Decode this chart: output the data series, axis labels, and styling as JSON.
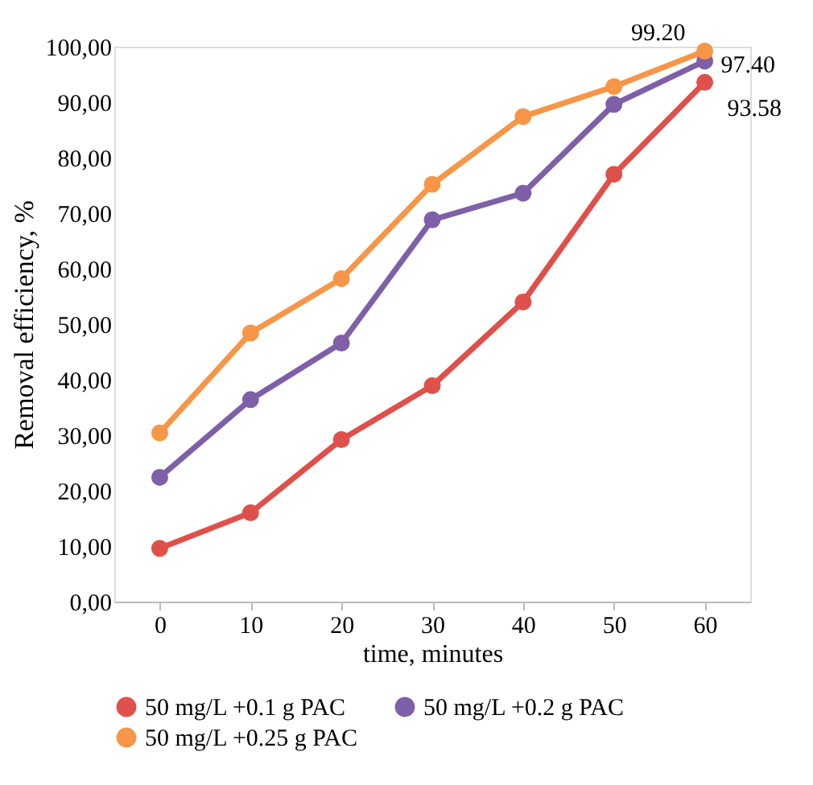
{
  "chart_data": {
    "type": "line",
    "xlabel": "time, minutes",
    "ylabel": "Removal efficiency, %",
    "categories": [
      "0",
      "10",
      "20",
      "30",
      "40",
      "50",
      "60"
    ],
    "series": [
      {
        "name": "50 mg/L +0.1 g PAC",
        "color": "#e0504a",
        "values": [
          9.6,
          16.0,
          29.2,
          38.9,
          54.0,
          77.0,
          93.58
        ],
        "value_labels": [
          null,
          null,
          null,
          null,
          null,
          null,
          "93.58"
        ]
      },
      {
        "name": "50 mg/L +0.2 g PAC",
        "color": "#7f5fa8",
        "values": [
          22.4,
          36.4,
          46.6,
          68.8,
          73.6,
          89.6,
          97.4
        ],
        "value_labels": [
          null,
          null,
          null,
          null,
          null,
          null,
          "97.40"
        ]
      },
      {
        "name": "50 mg/L +0.25 g PAC",
        "color": "#f79646",
        "values": [
          30.4,
          48.4,
          58.2,
          75.2,
          87.4,
          92.8,
          99.2
        ],
        "value_labels": [
          null,
          null,
          null,
          null,
          null,
          null,
          "99.20"
        ]
      }
    ],
    "ylim": [
      0,
      100
    ],
    "yticks": [
      {
        "value": 0,
        "label": "0,00"
      },
      {
        "value": 10,
        "label": "10,00"
      },
      {
        "value": 20,
        "label": "20,00"
      },
      {
        "value": 30,
        "label": "30,00"
      },
      {
        "value": 40,
        "label": "40,00"
      },
      {
        "value": 50,
        "label": "50,00"
      },
      {
        "value": 60,
        "label": "60,00"
      },
      {
        "value": 70,
        "label": "70,00"
      },
      {
        "value": 80,
        "label": "80,00"
      },
      {
        "value": 90,
        "label": "90,00"
      },
      {
        "value": 100,
        "label": "100,00"
      }
    ],
    "grid": false,
    "legend": "bottom",
    "marker": "circle",
    "line_style": "solid"
  }
}
